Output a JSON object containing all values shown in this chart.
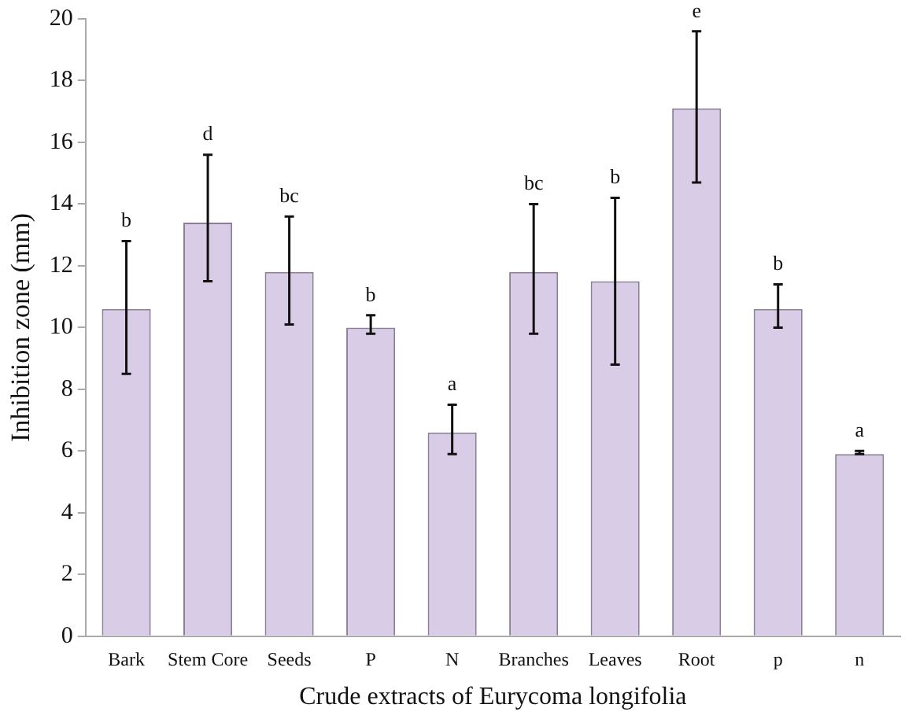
{
  "chart_data": {
    "type": "bar",
    "xlabel": "Crude extracts of Eurycoma longifolia",
    "ylabel": "Inhibition zone (mm)",
    "categories": [
      "Bark",
      "Stem Core",
      "Seeds",
      "P",
      "N",
      "Branches",
      "Leaves",
      "Root",
      "p",
      "n"
    ],
    "values": [
      10.6,
      13.4,
      11.8,
      10.0,
      6.6,
      11.8,
      11.5,
      17.1,
      10.6,
      5.9
    ],
    "errors": [
      [
        8.5,
        12.8
      ],
      [
        11.5,
        15.6
      ],
      [
        10.1,
        13.6
      ],
      [
        9.8,
        10.4
      ],
      [
        5.9,
        7.5
      ],
      [
        9.8,
        14.0
      ],
      [
        8.8,
        14.2
      ],
      [
        14.7,
        19.6
      ],
      [
        10.0,
        11.4
      ],
      [
        5.9,
        6.0
      ]
    ],
    "color": "#d9cce6",
    "ylim": [
      0,
      20
    ],
    "yticks": [
      0,
      2,
      4,
      6,
      8,
      10,
      12,
      14,
      16,
      18,
      20
    ],
    "grid": false,
    "legend": false,
    "annotations": [
      {
        "text": "b",
        "x": "Bark",
        "y": 12.8
      },
      {
        "text": "d",
        "x": "Stem Core",
        "y": 15.6
      },
      {
        "text": "bc",
        "x": "Seeds",
        "y": 13.6
      },
      {
        "text": "b",
        "x": "P",
        "y": 10.4
      },
      {
        "text": "a",
        "x": "N",
        "y": 7.5
      },
      {
        "text": "bc",
        "x": "Branches",
        "y": 14.0
      },
      {
        "text": "b",
        "x": "Leaves",
        "y": 14.2
      },
      {
        "text": "e",
        "x": "Root",
        "y": 19.6
      },
      {
        "text": "b",
        "x": "p",
        "y": 11.4
      },
      {
        "text": "a",
        "x": "n",
        "y": 6.0
      }
    ]
  }
}
